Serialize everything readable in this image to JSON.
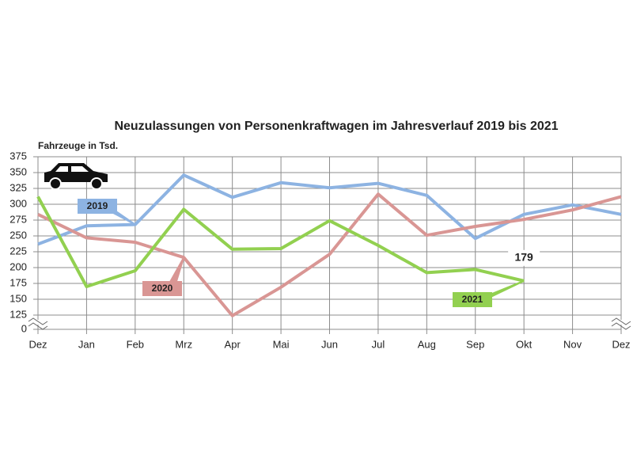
{
  "chart_data": {
    "type": "line",
    "title": "Neuzulassungen von Personenkraftwagen im Jahresverlauf 2019 bis 2021",
    "y_label": "Fahrzeuge in Tsd.",
    "categories": [
      "Dez",
      "Jan",
      "Feb",
      "Mrz",
      "Apr",
      "Mai",
      "Jun",
      "Jul",
      "Aug",
      "Sep",
      "Okt",
      "Nov",
      "Dez"
    ],
    "series": [
      {
        "name": "2019",
        "color": "#8db3e2",
        "values": [
          237,
          266,
          268,
          346,
          311,
          334,
          326,
          333,
          314,
          246,
          284,
          299,
          284
        ]
      },
      {
        "name": "2020",
        "color": "#d99694",
        "values": [
          284,
          247,
          240,
          216,
          120,
          169,
          221,
          316,
          251,
          265,
          276,
          291,
          312
        ]
      },
      {
        "name": "2021",
        "color": "#92d050",
        "values": [
          312,
          170,
          195,
          292,
          229,
          230,
          274,
          235,
          192,
          197,
          179,
          null,
          null
        ],
        "value_labels": [
          null,
          null,
          null,
          null,
          null,
          null,
          null,
          null,
          null,
          null,
          "179",
          null,
          null
        ]
      }
    ],
    "ylim": [
      0,
      375
    ],
    "yticks": [
      0,
      125,
      150,
      175,
      200,
      225,
      250,
      275,
      300,
      325,
      350,
      375
    ],
    "axis_break": true,
    "grid": true
  }
}
